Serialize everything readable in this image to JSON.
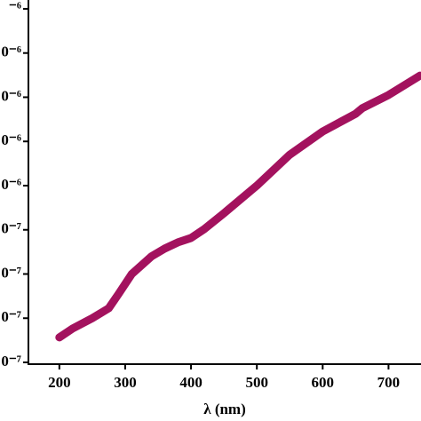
{
  "chart_data": {
    "type": "line",
    "x_label": "λ (nm)",
    "x": [
      200,
      220,
      250,
      275,
      290,
      310,
      340,
      360,
      380,
      400,
      420,
      450,
      500,
      550,
      600,
      650,
      660,
      700,
      748
    ],
    "series": [
      {
        "color": "#a3125e",
        "values": [
          3.13e-07,
          3.53e-07,
          4e-07,
          4.45e-07,
          5.1e-07,
          6e-07,
          6.8e-07,
          7.15e-07,
          7.43e-07,
          7.63e-07,
          8.03e-07,
          8.75e-07,
          1e-06,
          1.14e-06,
          1.245e-06,
          1.325e-06,
          1.35e-06,
          1.41e-06,
          1.498e-06
        ]
      }
    ],
    "xlim": [
      153,
      748
    ],
    "xticks": [
      200,
      300,
      400,
      500,
      600,
      700
    ],
    "ylim": [
      1.92e-07,
      1.84e-06
    ],
    "yticks": [
      {
        "value": 2e-07,
        "label": "0⁻⁷"
      },
      {
        "value": 4e-07,
        "label": "0⁻⁷"
      },
      {
        "value": 6e-07,
        "label": "0⁻⁷"
      },
      {
        "value": 8e-07,
        "label": "0⁻⁷"
      },
      {
        "value": 1e-06,
        "label": "0⁻⁶"
      },
      {
        "value": 1.2e-06,
        "label": "0⁻⁶"
      },
      {
        "value": 1.4e-06,
        "label": "0⁻⁶"
      },
      {
        "value": 1.6e-06,
        "label": "0⁻⁶"
      },
      {
        "value": 1.8e-06,
        "label": "⁻⁶"
      }
    ]
  }
}
